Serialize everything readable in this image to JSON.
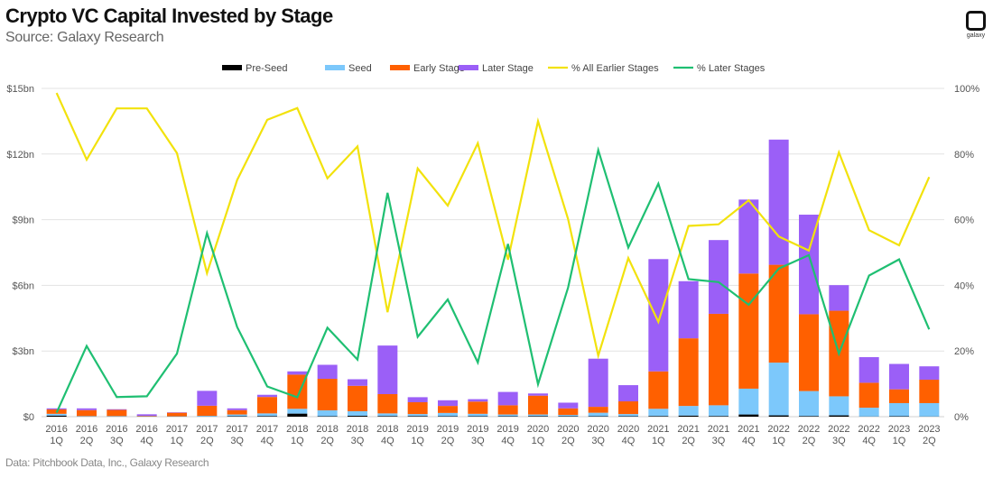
{
  "title": "Crypto VC Capital Invested by Stage",
  "subtitle": "Source: Galaxy Research",
  "footer": "Data: Pitchbook Data, Inc., Galaxy Research",
  "logo_text": "galaxy",
  "chart_data": {
    "type": "bar",
    "stacked": true,
    "title": "Crypto VC Capital Invested by Stage",
    "legend_position": "top-center",
    "grid": true,
    "categories": [
      [
        "2016",
        "1Q"
      ],
      [
        "2016",
        "2Q"
      ],
      [
        "2016",
        "3Q"
      ],
      [
        "2016",
        "4Q"
      ],
      [
        "2017",
        "1Q"
      ],
      [
        "2017",
        "2Q"
      ],
      [
        "2017",
        "3Q"
      ],
      [
        "2017",
        "4Q"
      ],
      [
        "2018",
        "1Q"
      ],
      [
        "2018",
        "2Q"
      ],
      [
        "2018",
        "3Q"
      ],
      [
        "2018",
        "4Q"
      ],
      [
        "2019",
        "1Q"
      ],
      [
        "2019",
        "2Q"
      ],
      [
        "2019",
        "3Q"
      ],
      [
        "2019",
        "4Q"
      ],
      [
        "2020",
        "1Q"
      ],
      [
        "2020",
        "2Q"
      ],
      [
        "2020",
        "3Q"
      ],
      [
        "2020",
        "4Q"
      ],
      [
        "2021",
        "1Q"
      ],
      [
        "2021",
        "2Q"
      ],
      [
        "2021",
        "3Q"
      ],
      [
        "2021",
        "4Q"
      ],
      [
        "2022",
        "1Q"
      ],
      [
        "2022",
        "2Q"
      ],
      [
        "2022",
        "3Q"
      ],
      [
        "2022",
        "4Q"
      ],
      [
        "2023",
        "1Q"
      ],
      [
        "2023",
        "2Q"
      ]
    ],
    "y_left": {
      "label": "",
      "range": [
        0,
        15
      ],
      "ticks": [
        0,
        3,
        6,
        9,
        12,
        15
      ],
      "tick_labels": [
        "$0",
        "$3bn",
        "$6bn",
        "$9bn",
        "$12bn",
        "$15bn"
      ]
    },
    "y_right": {
      "label": "",
      "range": [
        0,
        100
      ],
      "ticks": [
        0,
        20,
        40,
        60,
        80,
        100
      ],
      "tick_labels": [
        "0%",
        "20%",
        "40%",
        "60%",
        "80%",
        "100%"
      ]
    },
    "bar_series": [
      {
        "name": "Pre-Seed",
        "color": "#000000",
        "values": [
          0.05,
          0.01,
          0.01,
          0.01,
          0.01,
          0.01,
          0.02,
          0.03,
          0.14,
          0.02,
          0.04,
          0.03,
          0.03,
          0.02,
          0.02,
          0.02,
          0.03,
          0.02,
          0.02,
          0.02,
          0.03,
          0.05,
          0.03,
          0.1,
          0.06,
          0.03,
          0.06,
          0.01,
          0.02,
          0.01
        ]
      },
      {
        "name": "Seed",
        "color": "#7cc8fb",
        "values": [
          0.08,
          0.02,
          0.02,
          0.01,
          0.01,
          0.03,
          0.08,
          0.12,
          0.22,
          0.27,
          0.21,
          0.12,
          0.09,
          0.15,
          0.11,
          0.08,
          0.07,
          0.06,
          0.16,
          0.1,
          0.33,
          0.44,
          0.49,
          1.18,
          2.41,
          1.14,
          0.87,
          0.4,
          0.6,
          0.61
        ]
      },
      {
        "name": "Early Stage",
        "color": "#ff6000",
        "values": [
          0.2,
          0.27,
          0.28,
          0.02,
          0.16,
          0.46,
          0.2,
          0.75,
          1.56,
          1.44,
          1.16,
          0.88,
          0.54,
          0.32,
          0.56,
          0.42,
          0.86,
          0.3,
          0.27,
          0.58,
          1.71,
          3.09,
          4.18,
          5.26,
          4.47,
          3.51,
          3.91,
          1.14,
          0.63,
          1.07
        ]
      },
      {
        "name": "Later Stage",
        "color": "#9b5ff7",
        "values": [
          0.05,
          0.08,
          0.03,
          0.07,
          0.02,
          0.68,
          0.08,
          0.1,
          0.15,
          0.64,
          0.3,
          2.22,
          0.23,
          0.26,
          0.11,
          0.61,
          0.1,
          0.26,
          2.2,
          0.74,
          5.13,
          2.61,
          3.37,
          3.38,
          5.72,
          4.55,
          1.17,
          1.17,
          1.16,
          0.61
        ]
      }
    ],
    "line_series": [
      {
        "name": "% All Earlier Stages",
        "color": "#f2e20c",
        "axis": "right",
        "values": [
          98.6,
          78.3,
          93.9,
          93.9,
          80.3,
          43.7,
          72.1,
          90.4,
          94,
          72.6,
          82.3,
          31.8,
          75.6,
          64.3,
          83.3,
          47.8,
          90,
          60.2,
          18.6,
          48.3,
          28.9,
          58.1,
          58.6,
          65.9,
          54.9,
          50.6,
          80.5,
          56.8,
          52.2,
          73
        ]
      },
      {
        "name": "% Later Stages",
        "color": "#1fbf72",
        "axis": "right",
        "values": [
          1.2,
          21.5,
          6,
          6.2,
          19.2,
          55.9,
          27.3,
          9.2,
          5.9,
          27.1,
          17.4,
          68.2,
          24.3,
          35.7,
          16.5,
          52.6,
          9.9,
          39.3,
          81.2,
          51.5,
          71,
          41.9,
          41,
          34.1,
          45.1,
          49.2,
          19.2,
          43,
          47.9,
          26.6
        ]
      }
    ]
  }
}
